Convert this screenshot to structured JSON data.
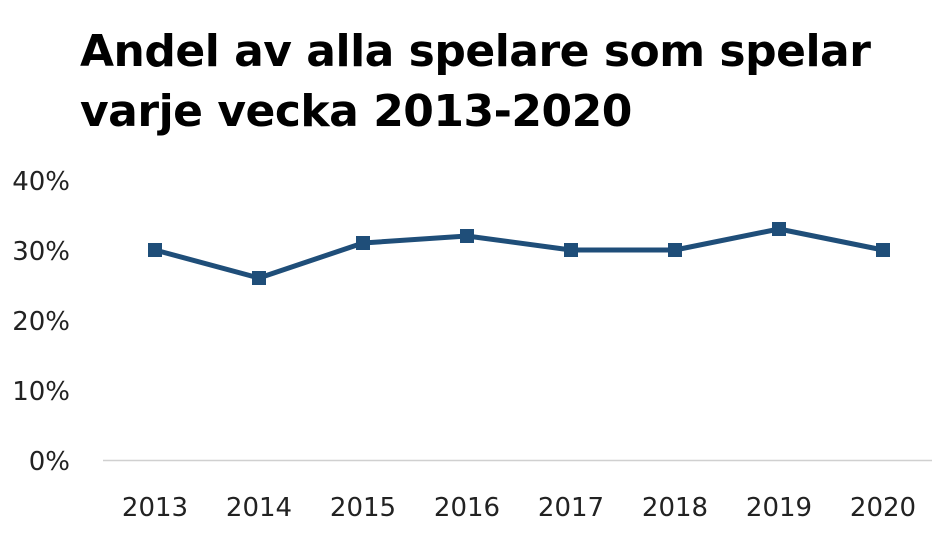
{
  "chart_data": {
    "type": "line",
    "title": "Andel av alla spelare som spelar varje vecka 2013-2020",
    "xlabel": "",
    "ylabel": "",
    "categories": [
      "2013",
      "2014",
      "2015",
      "2016",
      "2017",
      "2018",
      "2019",
      "2020"
    ],
    "series": [
      {
        "values": [
          30,
          26,
          31,
          32,
          30,
          30,
          33,
          30
        ]
      }
    ],
    "ylim": [
      0,
      40
    ],
    "yticks": [
      0,
      10,
      20,
      30,
      40
    ],
    "ytick_labels": [
      "0%",
      "10%",
      "20%",
      "30%",
      "40%"
    ],
    "grid": false,
    "legend": "none",
    "colors": {
      "line": "#1f4e79",
      "axis": "#d0d0d0"
    }
  }
}
